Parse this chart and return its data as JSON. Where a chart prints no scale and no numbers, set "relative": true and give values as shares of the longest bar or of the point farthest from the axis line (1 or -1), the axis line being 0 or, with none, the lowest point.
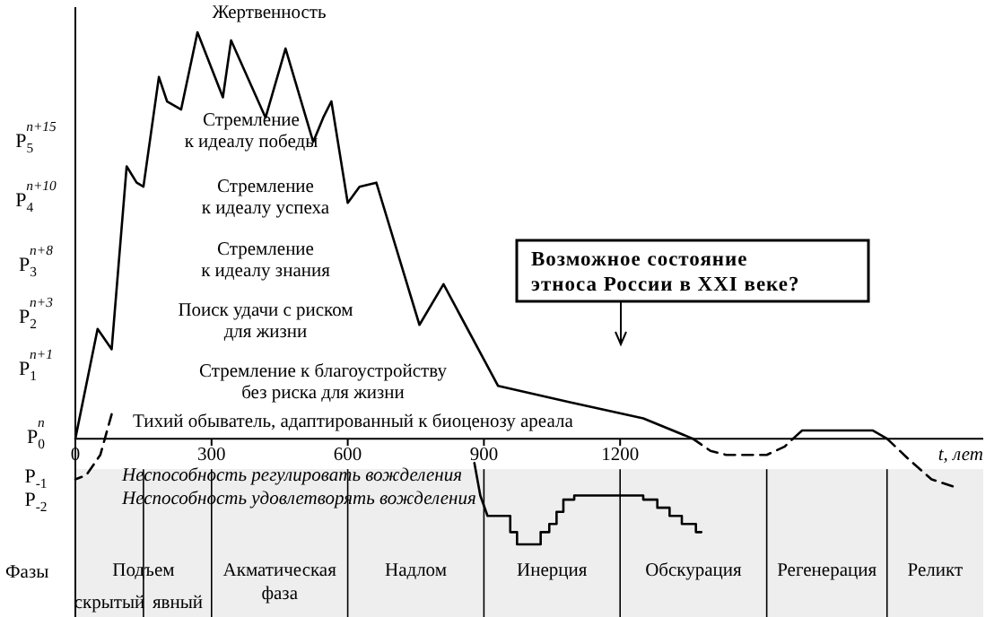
{
  "chart_data": {
    "type": "line",
    "relative": true,
    "xlabel": "t, лет",
    "xlim": [
      0,
      2000
    ],
    "xticks": [
      0,
      300,
      600,
      900,
      1200
    ],
    "series": [
      {
        "color": "#000000",
        "line_style": "solid",
        "x": [
          0,
          49,
          80,
          113,
          135,
          150,
          184,
          202,
          233,
          269,
          325,
          343,
          419,
          463,
          524,
          546,
          564,
          600,
          626,
          663,
          758,
          811,
          931,
          1087,
          1251,
          1360
        ],
        "values": [
          0,
          0.27,
          0.22,
          0.67,
          0.63,
          0.62,
          0.89,
          0.83,
          0.81,
          1,
          0.84,
          0.98,
          0.79,
          0.96,
          0.73,
          0.79,
          0.83,
          0.58,
          0.62,
          0.63,
          0.28,
          0.38,
          0.13,
          0.09,
          0.05,
          0
        ]
      },
      {
        "color": "#000000",
        "line_style": "dashed",
        "x": [
          1360,
          1399,
          1434,
          1523,
          1562,
          1581
        ],
        "values": [
          0,
          -0.03,
          -0.04,
          -0.04,
          -0.02,
          0
        ]
      },
      {
        "color": "#000000",
        "line_style": "solid",
        "x": [
          1581,
          1601,
          1660,
          1757,
          1788
        ],
        "values": [
          0,
          0.02,
          0.02,
          0.02,
          0
        ]
      },
      {
        "color": "#000000",
        "line_style": "dashed",
        "x": [
          1788,
          1835,
          1886,
          1940
        ],
        "values": [
          0,
          -0.05,
          -0.1,
          -0.12
        ]
      },
      {
        "color": "#000000",
        "line_style": "dashed",
        "x": [
          80,
          55,
          24,
          0
        ],
        "values": [
          0.06,
          -0.04,
          -0.09,
          -0.1
        ]
      },
      {
        "color": "#000000",
        "line_style": "solid",
        "x": [
          879,
          892,
          908,
          958,
          958,
          973,
          973,
          1025,
          1025,
          1044,
          1044,
          1060,
          1060,
          1075,
          1075,
          1099,
          1099,
          1251,
          1251,
          1282,
          1282,
          1309,
          1309,
          1336,
          1336,
          1367,
          1367,
          1379
        ],
        "values": [
          -0.06,
          -0.14,
          -0.19,
          -0.19,
          -0.23,
          -0.23,
          -0.26,
          -0.26,
          -0.23,
          -0.23,
          -0.21,
          -0.21,
          -0.18,
          -0.18,
          -0.15,
          -0.15,
          -0.14,
          -0.14,
          -0.15,
          -0.15,
          -0.17,
          -0.17,
          -0.19,
          -0.19,
          -0.21,
          -0.21,
          -0.23,
          -0.23
        ]
      }
    ],
    "bands": [
      {
        "axis": "x",
        "from": 0,
        "to": 300,
        "label": "Подъем",
        "color": "#eeeeee"
      },
      {
        "axis": "x",
        "from": 300,
        "to": 600,
        "label": "Акматическая фаза",
        "color": "#eeeeee"
      },
      {
        "axis": "x",
        "from": 600,
        "to": 900,
        "label": "Надлом",
        "color": "#eeeeee"
      },
      {
        "axis": "x",
        "from": 900,
        "to": 1200,
        "label": "Инерция",
        "color": "#eeeeee"
      },
      {
        "axis": "x",
        "from": 1200,
        "to": 1523,
        "label": "Обскурация",
        "color": "#eeeeee"
      },
      {
        "axis": "x",
        "from": 1523,
        "to": 1788,
        "label": "Регенерация",
        "color": "#eeeeee"
      },
      {
        "axis": "x",
        "from": 1788,
        "to": 2000,
        "label": "Реликт",
        "color": "#eeeeee"
      }
    ],
    "ref_lines": [
      {
        "axis": "x",
        "value": 150,
        "color": "#000000"
      },
      {
        "axis": "x",
        "value": 300,
        "color": "#000000"
      },
      {
        "axis": "x",
        "value": 600,
        "color": "#000000"
      },
      {
        "axis": "x",
        "value": 900,
        "color": "#000000"
      },
      {
        "axis": "x",
        "value": 1200,
        "color": "#000000"
      },
      {
        "axis": "x",
        "value": 1523,
        "color": "#000000"
      },
      {
        "axis": "x",
        "value": 1788,
        "color": "#000000"
      }
    ],
    "annotations": [
      "Жертвенность",
      "Стремление\nк идеалу победы",
      "Стремление\nк идеалу успеха",
      "Стремление\nк идеалу знания",
      "Поиск удачи с риском\nдля жизни",
      "Стремление к благоустройству\nбез риска для жизни",
      "Тихий обыватель, адаптированный к биоценозу ареала",
      "Неспособность регулировать вожделения",
      "Неспособность удовлетворять вожделения",
      "Возможное состояние\nэтноса России в XXI веке?",
      "Фазы",
      "P$_{5}$$^{n+15}$",
      "P$_{4}$$^{n+10}$",
      "P$_{3}$$^{n+8}$",
      "P$_{2}$$^{n+3}$",
      "P$_{1}$$^{n+1}$",
      "P$_{0}$$^{n}$",
      "P$_{-1}$",
      "P$_{-2}$",
      "скрытый",
      "явный"
    ]
  }
}
